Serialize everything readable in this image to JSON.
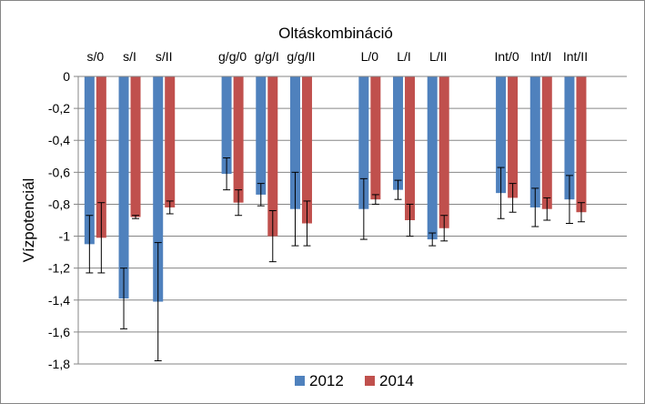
{
  "chart_data": {
    "type": "bar",
    "title": "Oltáskombináció",
    "xlabel": "",
    "ylabel": "Vízpotenciál",
    "ylim": [
      -1.8,
      0
    ],
    "yticks": [
      0,
      -0.2,
      -0.4,
      -0.6,
      -0.8,
      -1,
      -1.2,
      -1.4,
      -1.6,
      -1.8
    ],
    "ytick_labels": [
      "0",
      "-0,2",
      "-0,4",
      "-0,6",
      "-0,8",
      "-1",
      "-1,2",
      "-1,4",
      "-1,6",
      "-1,8"
    ],
    "grid": true,
    "legend_position": "bottom",
    "categories": [
      "s/0",
      "s/I",
      "s/II",
      "g/g/0",
      "g/g/I",
      "g/g/II",
      "L/0",
      "L/I",
      "L/II",
      "Int/0",
      "Int/I",
      "Int/II"
    ],
    "series": [
      {
        "name": "2012",
        "color": "#4F81BD",
        "values": [
          -1.05,
          -1.39,
          -1.41,
          -0.61,
          -0.74,
          -0.83,
          -0.83,
          -0.71,
          -1.02,
          -0.73,
          -0.82,
          -0.77
        ],
        "errors": [
          0.18,
          0.19,
          0.37,
          0.1,
          0.07,
          0.23,
          0.19,
          0.06,
          0.04,
          0.16,
          0.12,
          0.15
        ]
      },
      {
        "name": "2014",
        "color": "#C0504D",
        "values": [
          -1.01,
          -0.88,
          -0.82,
          -0.79,
          -1.0,
          -0.92,
          -0.77,
          -0.9,
          -0.95,
          -0.76,
          -0.83,
          -0.85
        ],
        "errors": [
          0.22,
          0.01,
          0.04,
          0.08,
          0.16,
          0.14,
          0.03,
          0.1,
          0.08,
          0.09,
          0.07,
          0.06
        ]
      }
    ]
  }
}
